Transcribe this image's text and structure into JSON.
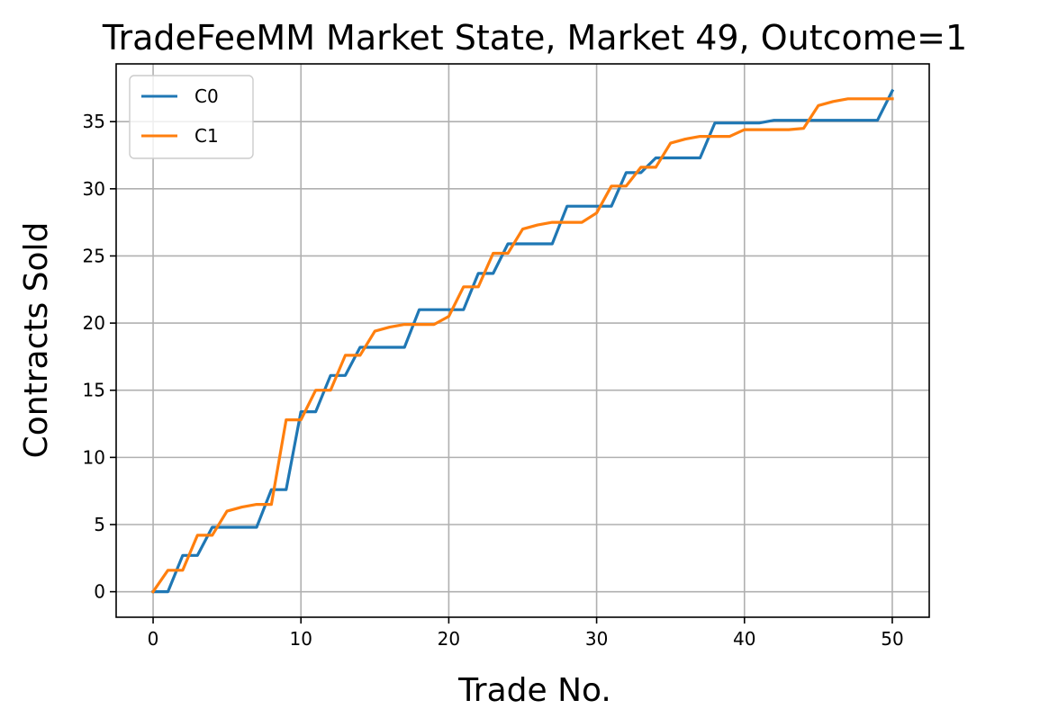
{
  "chart_data": {
    "type": "line",
    "title": "TradeFeeMM Market State, Market 49, Outcome=1",
    "xlabel": "Trade No.",
    "ylabel": "Contracts Sold",
    "xlim": [
      -2.5,
      52.5
    ],
    "ylim": [
      -1.9,
      39.3
    ],
    "xticks": [
      0,
      10,
      20,
      30,
      40,
      50
    ],
    "yticks": [
      0,
      5,
      10,
      15,
      20,
      25,
      30,
      35
    ],
    "grid": true,
    "legend_position": "upper-left",
    "x": [
      0,
      1,
      2,
      3,
      4,
      5,
      6,
      7,
      8,
      9,
      10,
      11,
      12,
      13,
      14,
      15,
      16,
      17,
      18,
      19,
      20,
      21,
      22,
      23,
      24,
      25,
      26,
      27,
      28,
      29,
      30,
      31,
      32,
      33,
      34,
      35,
      36,
      37,
      38,
      39,
      40,
      41,
      42,
      43,
      44,
      45,
      46,
      47,
      48,
      49,
      50
    ],
    "series": [
      {
        "name": "C0",
        "color": "#1f77b4",
        "values": [
          0,
          0,
          2.7,
          2.7,
          4.8,
          4.8,
          4.8,
          4.8,
          7.6,
          7.6,
          13.4,
          13.4,
          16.1,
          16.1,
          18.2,
          18.2,
          18.2,
          18.2,
          21.0,
          21.0,
          21.0,
          21.0,
          23.7,
          23.7,
          25.9,
          25.9,
          25.9,
          25.9,
          28.7,
          28.7,
          28.7,
          28.7,
          31.2,
          31.2,
          32.3,
          32.3,
          32.3,
          32.3,
          34.9,
          34.9,
          34.9,
          34.9,
          35.1,
          35.1,
          35.1,
          35.1,
          35.1,
          35.1,
          35.1,
          35.1,
          37.3
        ]
      },
      {
        "name": "C1",
        "color": "#ff7f0e",
        "values": [
          0,
          1.6,
          1.6,
          4.2,
          4.2,
          6.0,
          6.3,
          6.5,
          6.5,
          12.8,
          12.8,
          15.0,
          15.0,
          17.6,
          17.6,
          19.4,
          19.7,
          19.9,
          19.9,
          19.9,
          20.5,
          22.7,
          22.7,
          25.2,
          25.2,
          27.0,
          27.3,
          27.5,
          27.5,
          27.5,
          28.2,
          30.2,
          30.2,
          31.6,
          31.6,
          33.4,
          33.7,
          33.9,
          33.9,
          33.9,
          34.4,
          34.4,
          34.4,
          34.4,
          34.5,
          36.2,
          36.5,
          36.7,
          36.7,
          36.7,
          36.7
        ]
      }
    ]
  }
}
